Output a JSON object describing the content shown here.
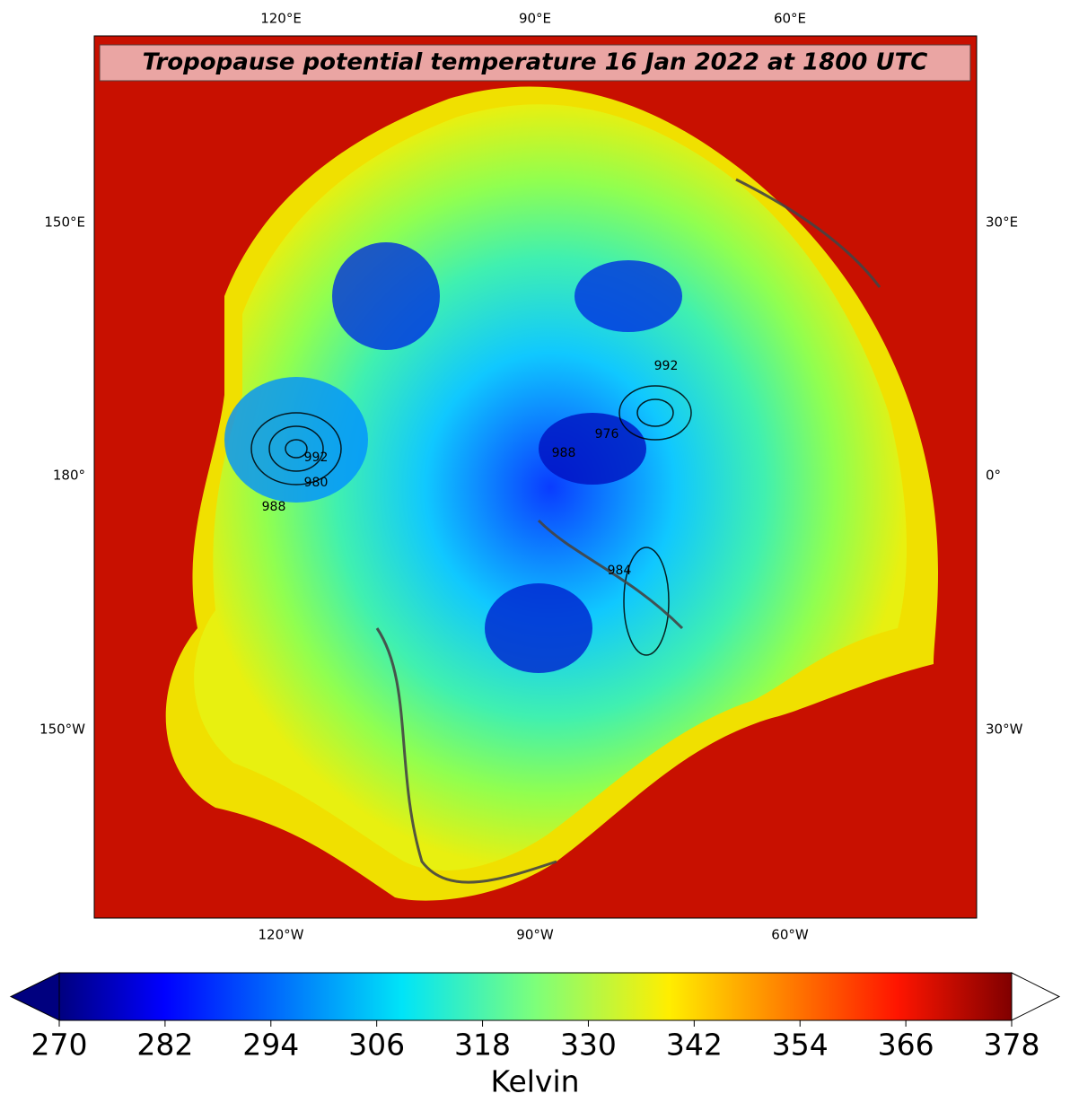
{
  "map": {
    "title": "Tropopause potential temperature 16 Jan 2022 at 1800 UTC",
    "longitude_labels": {
      "top": [
        "120°E",
        "90°E",
        "60°E"
      ],
      "left": [
        "150°E",
        "180°",
        "150°W"
      ],
      "right": [
        "30°E",
        "0°",
        "30°W"
      ],
      "bottom": [
        "120°W",
        "90°W",
        "60°W"
      ]
    },
    "contour_labels": [
      "992",
      "980",
      "988",
      "976",
      "988",
      "984",
      "992"
    ],
    "colorbar": {
      "label": "Kelvin",
      "lim": [
        270,
        378
      ],
      "ticks": [
        270,
        282,
        294,
        306,
        318,
        330,
        342,
        354,
        366,
        378
      ]
    }
  }
}
